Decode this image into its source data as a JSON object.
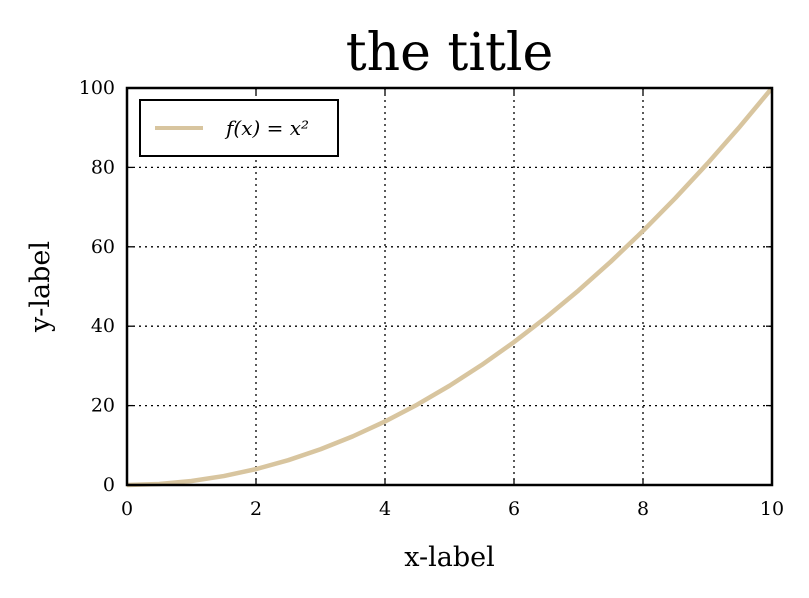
{
  "chart_data": {
    "type": "line",
    "title": "the title",
    "xlabel": "x-label",
    "ylabel": "y-label",
    "xlim": [
      0,
      10
    ],
    "ylim": [
      0,
      100
    ],
    "xticks": [
      0,
      2,
      4,
      6,
      8,
      10
    ],
    "yticks": [
      0,
      20,
      40,
      60,
      80,
      100
    ],
    "grid": true,
    "legend_position": "upper left",
    "series": [
      {
        "name": "f(x) = x²",
        "color": "#d8c59f",
        "x": [
          0,
          0.5,
          1,
          1.5,
          2,
          2.5,
          3,
          3.5,
          4,
          4.5,
          5,
          5.5,
          6,
          6.5,
          7,
          7.5,
          8,
          8.5,
          9,
          9.5,
          10
        ],
        "y": [
          0,
          0.25,
          1,
          2.25,
          4,
          6.25,
          9,
          12.25,
          16,
          20.25,
          25,
          30.25,
          36,
          42.25,
          49,
          56.25,
          64,
          72.25,
          81,
          90.25,
          100
        ]
      }
    ]
  }
}
